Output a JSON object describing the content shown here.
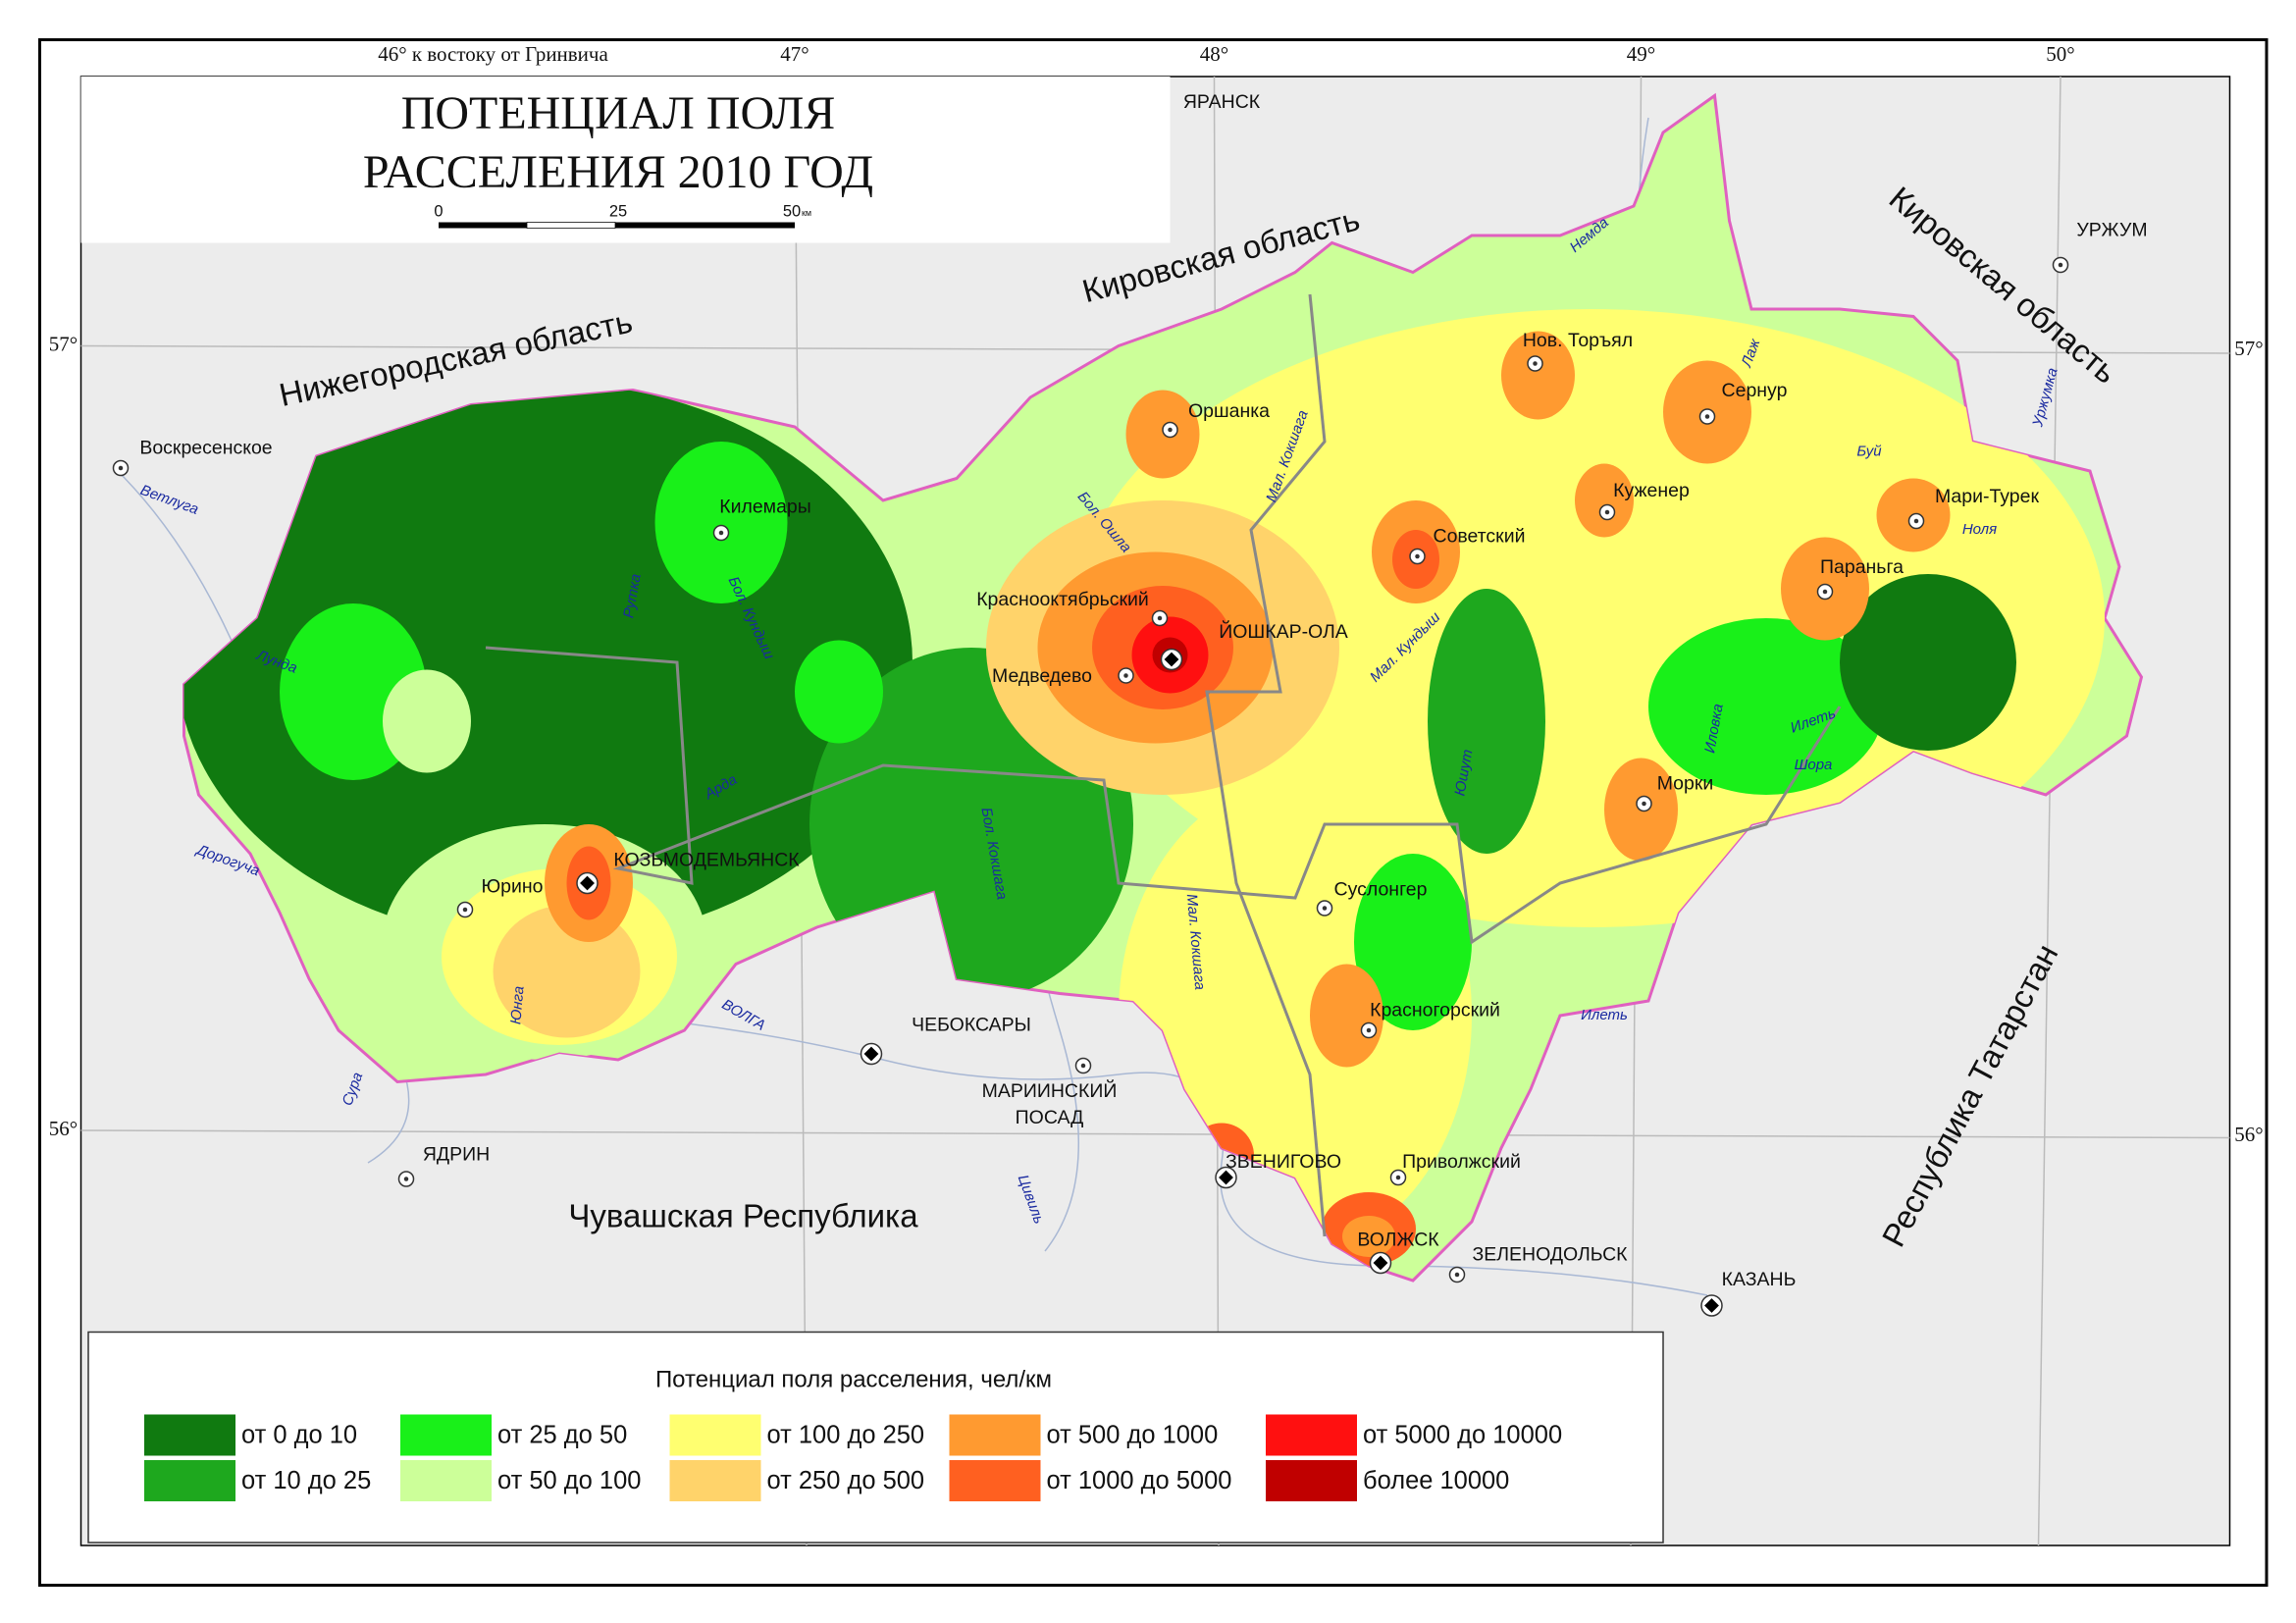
{
  "header": {
    "title": [
      "ПОТЕНЦИАЛ ПОЛЯ",
      "РАССЕЛЕНИЯ 2010 ГОД"
    ],
    "scale": [
      "0",
      "25",
      "50",
      "км"
    ]
  },
  "graticule": [
    "46°  к востоку от Гринвича",
    "47°",
    "48°",
    "49°",
    "50°",
    "57°",
    "56°",
    "57°",
    "56°"
  ],
  "regions": [
    "Нижегородская область",
    "Кировская область",
    "Кировская область",
    "Чувашская Республика",
    "Республика Татарстан"
  ],
  "cities": [
    "ЯРАНСК",
    "УРЖУМ",
    "Воскресенское",
    "Килемары",
    "Оршанка",
    "Нов. Торъял",
    "Сернур",
    "Куженер",
    "Мари-Турек",
    "Советский",
    "Параньга",
    "Краснооктябрьский",
    "ЙОШКАР-ОЛА",
    "Медведево",
    "Морки",
    "Суслонгер",
    "Юрино",
    "КОЗЬМОДЕМЬЯНСК",
    "ЧЕБОКСАРЫ",
    [
      "МАРИИНСКИЙ",
      "ПОСАД"
    ],
    "Красногорский",
    "ЯДРИН",
    "ЗВЕНИГОВО",
    "Приволжский",
    "ВОЛЖСК",
    "ЗЕЛЕНОДОЛЬСК",
    "КАЗАНЬ"
  ],
  "rivers": [
    "Ветлуга",
    "Лунда",
    "Рутка",
    "Бол. Кундыш",
    "Арда",
    "Дорогуча",
    "Юнга",
    "Сура",
    "ВОЛГА",
    "Бол. Кокшага",
    "Мал. Кокшага",
    "Цивиль",
    "Немда",
    "Бол. Ошла",
    "Мал. Кокшага",
    "Мал. Кундыш",
    "Юшут",
    "Иловка",
    "Илеть",
    "Шора",
    "Лаж",
    "Буй",
    "Ноля",
    "Уржумка",
    "Илеть"
  ],
  "legend": {
    "title": "Потенциал поля расселения, чел/км",
    "items": [
      {
        "label": "от 0 до 10",
        "color": "#107a10"
      },
      {
        "label": "от 10 до 25",
        "color": "#1ea81e"
      },
      {
        "label": "от 25 до 50",
        "color": "#19f019"
      },
      {
        "label": "от 50 до 100",
        "color": "#ccff99"
      },
      {
        "label": "от 100 до 250",
        "color": "#ffff70"
      },
      {
        "label": "от 250 до 500",
        "color": "#ffd36a"
      },
      {
        "label": "от 500 до 1000",
        "color": "#ff9a30"
      },
      {
        "label": "от 1000 до 5000",
        "color": "#ff6020"
      },
      {
        "label": "от 5000 до 10000",
        "color": "#ff1010"
      },
      {
        "label": "более 10000",
        "color": "#c00000"
      }
    ]
  }
}
